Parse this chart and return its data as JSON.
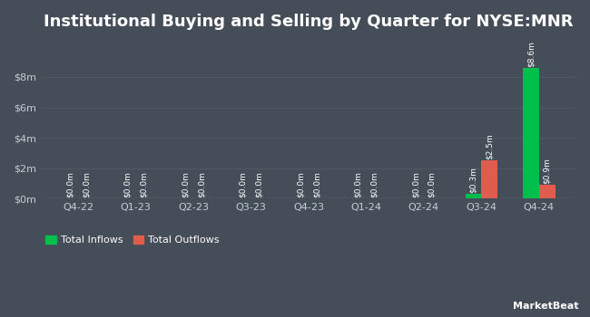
{
  "title": "Institutional Buying and Selling by Quarter for NYSE:MNR",
  "categories": [
    "Q4-22",
    "Q1-23",
    "Q2-23",
    "Q3-23",
    "Q4-23",
    "Q1-24",
    "Q2-24",
    "Q3-24",
    "Q4-24"
  ],
  "inflows": [
    0.0,
    0.0,
    0.0,
    0.0,
    0.0,
    0.0,
    0.0,
    0.3,
    8.6
  ],
  "outflows": [
    0.0,
    0.0,
    0.0,
    0.0,
    0.0,
    0.0,
    0.0,
    2.5,
    0.9
  ],
  "inflow_labels": [
    "$0.0m",
    "$0.0m",
    "$0.0m",
    "$0.0m",
    "$0.0m",
    "$0.0m",
    "$0.0m",
    "$0.3m",
    "$8.6m"
  ],
  "outflow_labels": [
    "$0.0m",
    "$0.0m",
    "$0.0m",
    "$0.0m",
    "$0.0m",
    "$0.0m",
    "$0.0m",
    "$2.5m",
    "$0.9m"
  ],
  "inflow_color": "#00c04b",
  "outflow_color": "#e05c4e",
  "background_color": "#444d58",
  "grid_color": "#505a66",
  "text_color": "#ffffff",
  "label_color": "#c8cdd4",
  "yticks": [
    0,
    2,
    4,
    6,
    8
  ],
  "ytick_labels": [
    "$0m",
    "$2m",
    "$4m",
    "$6m",
    "$8m"
  ],
  "ylim": [
    0,
    10.5
  ],
  "bar_width": 0.28,
  "legend_inflow": "Total Inflows",
  "legend_outflow": "Total Outflows",
  "title_fontsize": 13,
  "axis_fontsize": 8,
  "label_fontsize": 6.5
}
